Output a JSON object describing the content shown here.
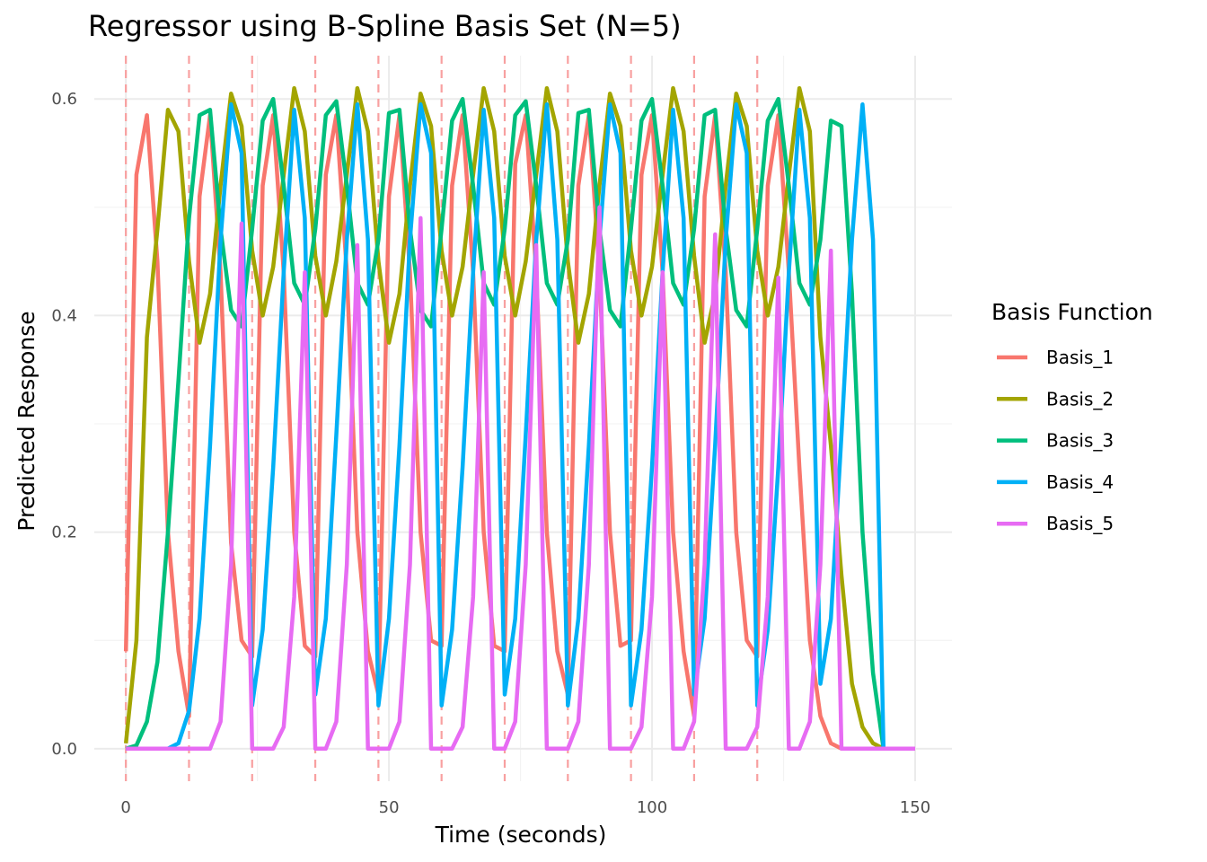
{
  "chart_data": {
    "type": "line",
    "title": "Regressor using B-Spline Basis Set (N=5)",
    "xlabel": "Time (seconds)",
    "ylabel": "Predicted Response",
    "xlim": [
      -6,
      157
    ],
    "ylim": [
      -0.03,
      0.64
    ],
    "x_ticks": [
      0,
      50,
      100,
      150
    ],
    "x_tick_labels": [
      "0",
      "50",
      "100",
      "150"
    ],
    "y_ticks": [
      0.0,
      0.2,
      0.4,
      0.6
    ],
    "y_tick_labels": [
      "0.0",
      "0.2",
      "0.4",
      "0.6"
    ],
    "grid": true,
    "legend_title": "Basis Function",
    "legend_position": "right",
    "onsets": [
      0,
      12,
      24,
      36,
      48,
      60,
      72,
      84,
      96,
      108,
      120
    ],
    "x": [
      0,
      2,
      4,
      6,
      8,
      10,
      12,
      14,
      16,
      18,
      20,
      22,
      24,
      26,
      28,
      30,
      32,
      34,
      36,
      38,
      40,
      42,
      44,
      46,
      48,
      50,
      52,
      54,
      56,
      58,
      60,
      62,
      64,
      66,
      68,
      70,
      72,
      74,
      76,
      78,
      80,
      82,
      84,
      86,
      88,
      90,
      92,
      94,
      96,
      98,
      100,
      102,
      104,
      106,
      108,
      110,
      112,
      114,
      116,
      118,
      120,
      122,
      124,
      126,
      128,
      130,
      132,
      134,
      136,
      138,
      140,
      142,
      144,
      146,
      148,
      150
    ],
    "series": [
      {
        "name": "Basis_1",
        "color": "#F8766D",
        "values": [
          0.09,
          0.53,
          0.585,
          0.45,
          0.2,
          0.09,
          0.03,
          0.51,
          0.585,
          0.44,
          0.19,
          0.1,
          0.085,
          0.52,
          0.585,
          0.44,
          0.2,
          0.095,
          0.085,
          0.53,
          0.585,
          0.44,
          0.2,
          0.09,
          0.05,
          0.51,
          0.585,
          0.44,
          0.2,
          0.1,
          0.095,
          0.52,
          0.585,
          0.44,
          0.2,
          0.095,
          0.09,
          0.54,
          0.585,
          0.44,
          0.2,
          0.09,
          0.05,
          0.52,
          0.585,
          0.44,
          0.2,
          0.095,
          0.1,
          0.53,
          0.585,
          0.44,
          0.2,
          0.09,
          0.03,
          0.51,
          0.585,
          0.44,
          0.2,
          0.1,
          0.085,
          0.52,
          0.585,
          0.44,
          0.26,
          0.1,
          0.03,
          0.005,
          0,
          0,
          0,
          0,
          0,
          0,
          0,
          0
        ]
      },
      {
        "name": "Basis_2",
        "color": "#A3A500",
        "values": [
          0.005,
          0.1,
          0.38,
          0.48,
          0.59,
          0.57,
          0.45,
          0.375,
          0.42,
          0.52,
          0.605,
          0.575,
          0.46,
          0.4,
          0.445,
          0.53,
          0.61,
          0.57,
          0.455,
          0.4,
          0.45,
          0.53,
          0.61,
          0.57,
          0.45,
          0.375,
          0.42,
          0.52,
          0.605,
          0.575,
          0.46,
          0.4,
          0.445,
          0.53,
          0.61,
          0.57,
          0.455,
          0.4,
          0.45,
          0.53,
          0.61,
          0.57,
          0.45,
          0.375,
          0.42,
          0.52,
          0.605,
          0.575,
          0.46,
          0.4,
          0.445,
          0.53,
          0.61,
          0.57,
          0.455,
          0.375,
          0.42,
          0.52,
          0.605,
          0.575,
          0.46,
          0.4,
          0.445,
          0.53,
          0.61,
          0.57,
          0.38,
          0.28,
          0.16,
          0.06,
          0.02,
          0.005,
          0,
          0,
          0,
          0
        ]
      },
      {
        "name": "Basis_3",
        "color": "#00BF7D",
        "values": [
          0,
          0.003,
          0.025,
          0.08,
          0.2,
          0.34,
          0.49,
          0.585,
          0.59,
          0.48,
          0.405,
          0.39,
          0.48,
          0.58,
          0.6,
          0.52,
          0.43,
          0.41,
          0.48,
          0.585,
          0.598,
          0.52,
          0.43,
          0.41,
          0.47,
          0.587,
          0.59,
          0.48,
          0.405,
          0.39,
          0.48,
          0.58,
          0.6,
          0.52,
          0.43,
          0.41,
          0.48,
          0.585,
          0.598,
          0.52,
          0.43,
          0.41,
          0.47,
          0.587,
          0.59,
          0.48,
          0.405,
          0.39,
          0.48,
          0.58,
          0.6,
          0.52,
          0.43,
          0.41,
          0.48,
          0.585,
          0.59,
          0.48,
          0.405,
          0.39,
          0.48,
          0.58,
          0.6,
          0.52,
          0.43,
          0.41,
          0.47,
          0.58,
          0.575,
          0.42,
          0.2,
          0.07,
          0,
          0,
          0,
          0
        ]
      },
      {
        "name": "Basis_4",
        "color": "#00B0F6",
        "values": [
          0,
          0,
          0,
          0,
          0,
          0.005,
          0.035,
          0.12,
          0.28,
          0.47,
          0.595,
          0.55,
          0.04,
          0.11,
          0.26,
          0.44,
          0.59,
          0.49,
          0.05,
          0.12,
          0.29,
          0.47,
          0.595,
          0.47,
          0.04,
          0.12,
          0.28,
          0.47,
          0.595,
          0.55,
          0.04,
          0.11,
          0.26,
          0.44,
          0.59,
          0.49,
          0.05,
          0.12,
          0.29,
          0.47,
          0.595,
          0.47,
          0.04,
          0.12,
          0.28,
          0.47,
          0.595,
          0.55,
          0.04,
          0.11,
          0.26,
          0.44,
          0.59,
          0.49,
          0.05,
          0.12,
          0.28,
          0.47,
          0.595,
          0.55,
          0.04,
          0.11,
          0.26,
          0.44,
          0.59,
          0.49,
          0.06,
          0.12,
          0.29,
          0.47,
          0.595,
          0.47,
          0,
          0,
          0,
          0
        ]
      },
      {
        "name": "Basis_5",
        "color": "#E76BF3",
        "values": [
          0,
          0,
          0,
          0,
          0,
          0,
          0,
          0,
          0,
          0.025,
          0.17,
          0.485,
          0,
          0,
          0,
          0.02,
          0.14,
          0.44,
          0,
          0,
          0.025,
          0.17,
          0.465,
          0,
          0,
          0,
          0.025,
          0.17,
          0.49,
          0,
          0,
          0,
          0.02,
          0.14,
          0.44,
          0,
          0,
          0.025,
          0.17,
          0.465,
          0,
          0,
          0,
          0.025,
          0.17,
          0.5,
          0,
          0,
          0,
          0.02,
          0.14,
          0.44,
          0,
          0,
          0.025,
          0.17,
          0.475,
          0,
          0,
          0,
          0.02,
          0.14,
          0.435,
          0,
          0,
          0.025,
          0.17,
          0.46,
          0,
          0,
          0,
          0,
          0,
          0,
          0,
          0
        ]
      }
    ]
  }
}
